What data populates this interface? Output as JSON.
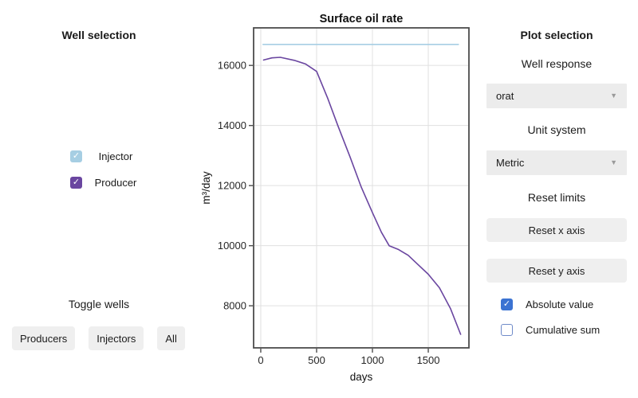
{
  "left_panel": {
    "title": "Well selection",
    "wells": [
      {
        "label": "Injector",
        "checked": true,
        "color": "#a6cee3"
      },
      {
        "label": "Producer",
        "checked": true,
        "color": "#6a46a0"
      }
    ],
    "toggle_title": "Toggle wells",
    "toggle_buttons": [
      {
        "label": "Producers"
      },
      {
        "label": "Injectors"
      },
      {
        "label": "All"
      }
    ]
  },
  "chart_data": {
    "type": "line",
    "title": "Surface oil rate",
    "xlabel": "days",
    "ylabel": "m³/day",
    "xlim": [
      -64,
      1864
    ],
    "ylim": [
      6600,
      17250
    ],
    "xticks": [
      0,
      500,
      1000,
      1500
    ],
    "yticks": [
      8000,
      10000,
      12000,
      14000,
      16000
    ],
    "grid": true,
    "legend_position": "none",
    "series": [
      {
        "name": "Injector",
        "color": "#a6cee3",
        "x": [
          20,
          1770
        ],
        "y": [
          16700,
          16700
        ]
      },
      {
        "name": "Producer",
        "color": "#6a46a0",
        "x": [
          25,
          100,
          175,
          300,
          400,
          500,
          600,
          690,
          800,
          900,
          1000,
          1080,
          1150,
          1230,
          1320,
          1400,
          1500,
          1600,
          1700,
          1790
        ],
        "y": [
          16180,
          16250,
          16270,
          16170,
          16050,
          15800,
          14900,
          14000,
          12950,
          11950,
          11100,
          10450,
          10000,
          9880,
          9680,
          9400,
          9050,
          8600,
          7900,
          7050
        ]
      }
    ]
  },
  "right_panel": {
    "title": "Plot selection",
    "well_response_label": "Well response",
    "well_response_value": "orat",
    "unit_system_label": "Unit system",
    "unit_system_value": "Metric",
    "reset_limits_label": "Reset limits",
    "reset_x_button": "Reset x axis",
    "reset_y_button": "Reset y axis",
    "checkboxes": [
      {
        "label": "Absolute value",
        "checked": true,
        "color": "#3b73d2"
      },
      {
        "label": "Cumulative sum",
        "checked": false,
        "color": "#3b73d2"
      }
    ]
  },
  "colors": {
    "accent_checkbox_blue": "#3b73d2",
    "unchecked_border": "#6f8bc9",
    "injector": "#a6cee3",
    "producer": "#6a46a0",
    "axis_frame": "#4d4d4d",
    "gridline": "#e0e0e0",
    "widget_bg": "#efefef"
  }
}
